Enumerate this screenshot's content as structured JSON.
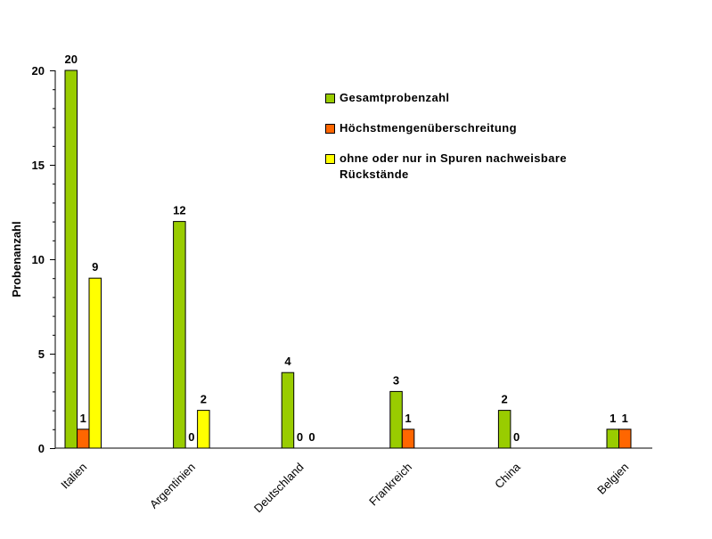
{
  "chart_data": {
    "type": "bar",
    "title": "",
    "xlabel": "",
    "ylabel": "Probenanzahl",
    "ylim": [
      0,
      20
    ],
    "yticks": [
      "0",
      "5",
      "10",
      "15",
      "20"
    ],
    "categories": [
      "Italien",
      "Argentinien",
      "Deutschland",
      "Frankreich",
      "China",
      "Belgien"
    ],
    "series": [
      {
        "name": "Gesamtprobenzahl",
        "color": "#99cc00",
        "values": [
          20,
          12,
          4,
          3,
          2,
          1
        ]
      },
      {
        "name": "Höchstmengenüberschreitung",
        "color": "#ff6600",
        "values": [
          1,
          0,
          0,
          1,
          0,
          1
        ]
      },
      {
        "name": "ohne oder nur in Spuren nachweisbare Rückstände",
        "color": "#ffff00",
        "values": [
          9,
          2,
          0,
          null,
          null,
          null
        ]
      }
    ],
    "legend_position": "top-right",
    "grid": false
  }
}
